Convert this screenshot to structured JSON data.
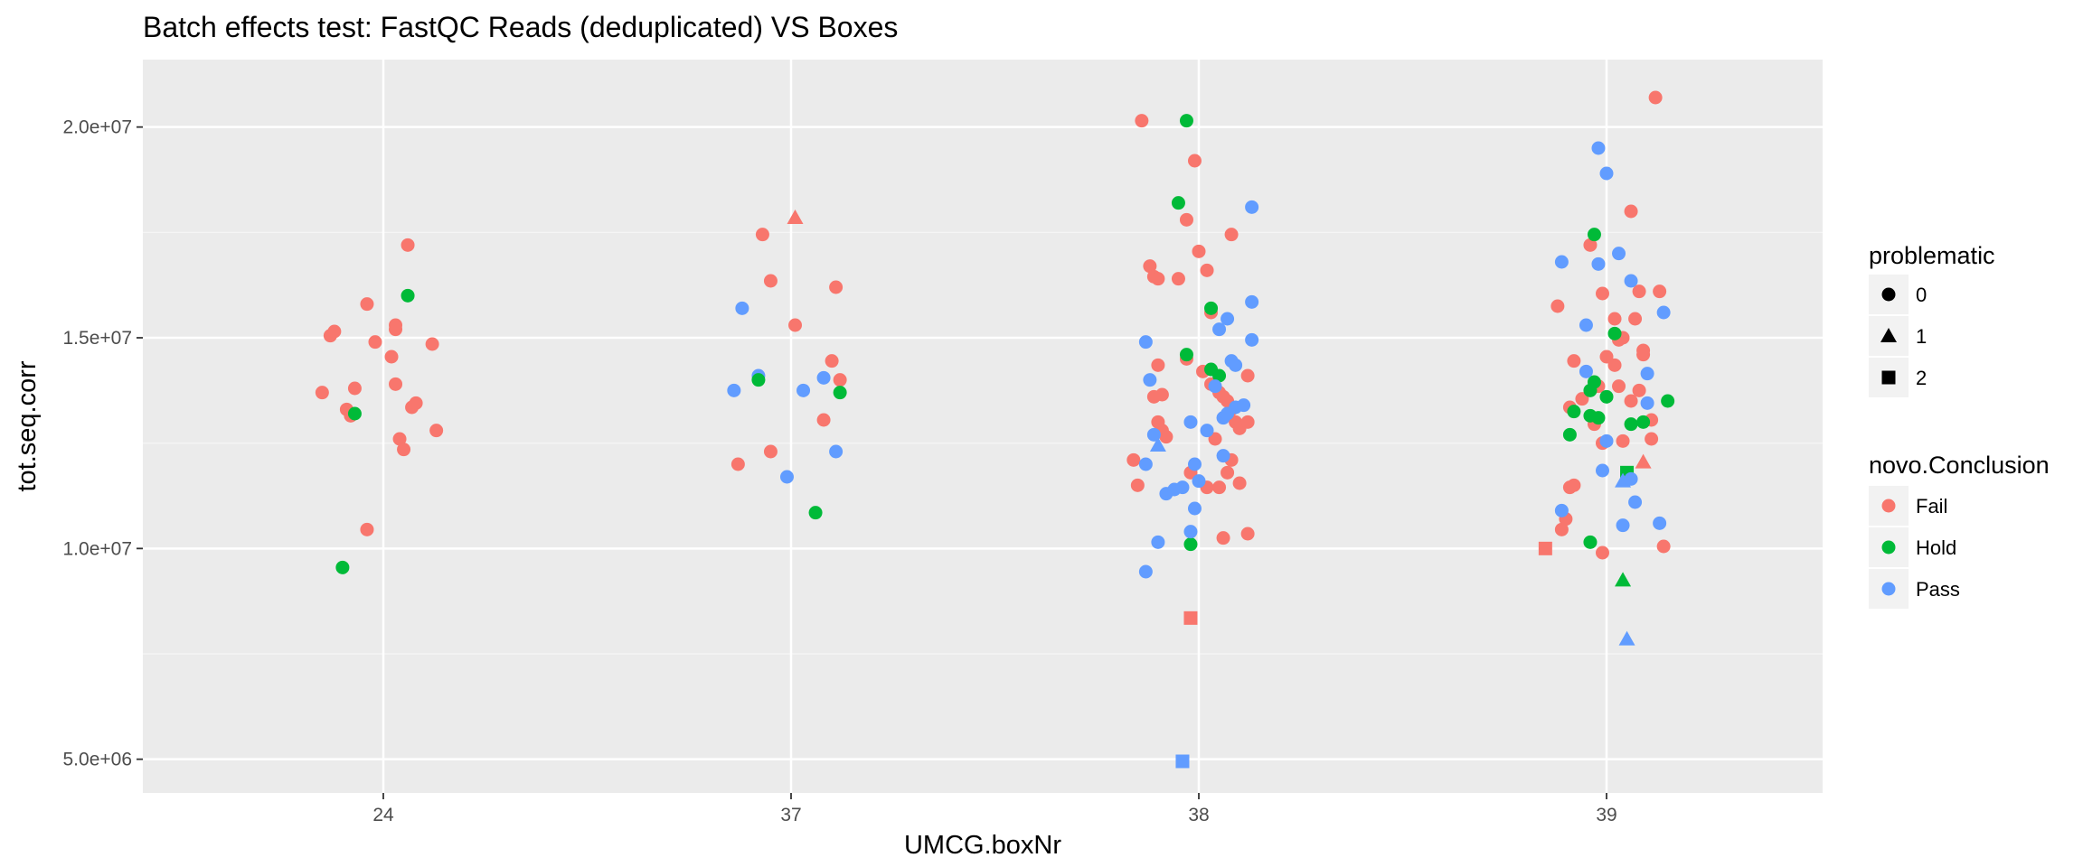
{
  "chart_data": {
    "type": "scatter",
    "title": "Batch effects test: FastQC Reads (deduplicated) VS Boxes",
    "xlabel": "UMCG.boxNr",
    "ylabel": "tot.seq.corr",
    "categories": [
      "24",
      "37",
      "38",
      "39"
    ],
    "ylim": [
      4200000,
      21600000
    ],
    "yticks": [
      5000000,
      10000000,
      15000000,
      20000000
    ],
    "ytick_labels": [
      "5.0e+06",
      "1.0e+07",
      "1.5e+07",
      "2.0e+07"
    ],
    "grid": true,
    "legend_position": "right",
    "legends": {
      "shape": {
        "title": "problematic",
        "entries": [
          {
            "label": "0",
            "shape": "circle"
          },
          {
            "label": "1",
            "shape": "triangle"
          },
          {
            "label": "2",
            "shape": "square"
          }
        ]
      },
      "color": {
        "title": "novo.Conclusion",
        "entries": [
          {
            "label": "Fail",
            "color": "#F8766D"
          },
          {
            "label": "Hold",
            "color": "#00BA38"
          },
          {
            "label": "Pass",
            "color": "#619CFF"
          }
        ]
      }
    },
    "colors": {
      "Fail": "#F8766D",
      "Hold": "#00BA38",
      "Pass": "#619CFF"
    },
    "points": [
      [
        "24",
        -0.15,
        13700000,
        "Fail",
        0
      ],
      [
        "24",
        -0.13,
        15050000,
        "Fail",
        0
      ],
      [
        "24",
        -0.12,
        15150000,
        "Fail",
        0
      ],
      [
        "24",
        -0.09,
        13300000,
        "Fail",
        0
      ],
      [
        "24",
        -0.08,
        13150000,
        "Fail",
        0
      ],
      [
        "24",
        -0.07,
        13800000,
        "Fail",
        0
      ],
      [
        "24",
        -0.04,
        15800000,
        "Fail",
        0
      ],
      [
        "24",
        -0.04,
        10450000,
        "Fail",
        0
      ],
      [
        "24",
        -0.02,
        14900000,
        "Fail",
        0
      ],
      [
        "24",
        0.02,
        14550000,
        "Fail",
        0
      ],
      [
        "24",
        0.03,
        15200000,
        "Fail",
        0
      ],
      [
        "24",
        0.03,
        15300000,
        "Fail",
        0
      ],
      [
        "24",
        0.03,
        13900000,
        "Fail",
        0
      ],
      [
        "24",
        0.04,
        12600000,
        "Fail",
        0
      ],
      [
        "24",
        0.05,
        12350000,
        "Fail",
        0
      ],
      [
        "24",
        0.06,
        17200000,
        "Fail",
        0
      ],
      [
        "24",
        0.07,
        13350000,
        "Fail",
        0
      ],
      [
        "24",
        0.08,
        13450000,
        "Fail",
        0
      ],
      [
        "24",
        0.12,
        14850000,
        "Fail",
        0
      ],
      [
        "24",
        0.13,
        12800000,
        "Fail",
        0
      ],
      [
        "24",
        -0.07,
        13200000,
        "Hold",
        0
      ],
      [
        "24",
        -0.1,
        9550000,
        "Hold",
        0
      ],
      [
        "24",
        0.06,
        16000000,
        "Hold",
        0
      ],
      [
        "37",
        -0.13,
        12000000,
        "Fail",
        0
      ],
      [
        "37",
        -0.07,
        17450000,
        "Fail",
        0
      ],
      [
        "37",
        -0.05,
        16350000,
        "Fail",
        0
      ],
      [
        "37",
        -0.05,
        12300000,
        "Fail",
        0
      ],
      [
        "37",
        0.01,
        15300000,
        "Fail",
        0
      ],
      [
        "37",
        0.08,
        13050000,
        "Fail",
        0
      ],
      [
        "37",
        0.1,
        14450000,
        "Fail",
        0
      ],
      [
        "37",
        0.11,
        16200000,
        "Fail",
        0
      ],
      [
        "37",
        0.12,
        14000000,
        "Fail",
        0
      ],
      [
        "37",
        0.01,
        17850000,
        "Fail",
        1
      ],
      [
        "37",
        -0.14,
        13750000,
        "Pass",
        0
      ],
      [
        "37",
        -0.12,
        15700000,
        "Pass",
        0
      ],
      [
        "37",
        -0.08,
        14100000,
        "Pass",
        0
      ],
      [
        "37",
        -0.01,
        11700000,
        "Pass",
        0
      ],
      [
        "37",
        0.03,
        13750000,
        "Pass",
        0
      ],
      [
        "37",
        0.08,
        14050000,
        "Pass",
        0
      ],
      [
        "37",
        0.11,
        12300000,
        "Pass",
        0
      ],
      [
        "37",
        -0.08,
        14000000,
        "Hold",
        0
      ],
      [
        "37",
        0.06,
        10850000,
        "Hold",
        0
      ],
      [
        "37",
        0.12,
        13700000,
        "Hold",
        0
      ],
      [
        "38",
        -0.14,
        20150000,
        "Fail",
        0
      ],
      [
        "38",
        -0.12,
        16700000,
        "Fail",
        0
      ],
      [
        "38",
        -0.11,
        16450000,
        "Fail",
        0
      ],
      [
        "38",
        -0.1,
        16400000,
        "Fail",
        0
      ],
      [
        "38",
        -0.1,
        14350000,
        "Fail",
        0
      ],
      [
        "38",
        -0.09,
        13650000,
        "Fail",
        0
      ],
      [
        "38",
        -0.11,
        13600000,
        "Fail",
        0
      ],
      [
        "38",
        -0.1,
        13000000,
        "Fail",
        0
      ],
      [
        "38",
        -0.09,
        12800000,
        "Fail",
        0
      ],
      [
        "38",
        -0.08,
        12650000,
        "Fail",
        0
      ],
      [
        "38",
        -0.16,
        12100000,
        "Fail",
        0
      ],
      [
        "38",
        -0.15,
        11500000,
        "Fail",
        0
      ],
      [
        "38",
        -0.05,
        16400000,
        "Fail",
        0
      ],
      [
        "38",
        -0.03,
        17800000,
        "Fail",
        0
      ],
      [
        "38",
        -0.01,
        19200000,
        "Fail",
        0
      ],
      [
        "38",
        0,
        17050000,
        "Fail",
        0
      ],
      [
        "38",
        0.02,
        16600000,
        "Fail",
        0
      ],
      [
        "38",
        0.03,
        15600000,
        "Fail",
        0
      ],
      [
        "38",
        -0.03,
        14500000,
        "Fail",
        0
      ],
      [
        "38",
        0.01,
        14200000,
        "Fail",
        0
      ],
      [
        "38",
        0.03,
        13900000,
        "Fail",
        0
      ],
      [
        "38",
        0.05,
        13700000,
        "Fail",
        0
      ],
      [
        "38",
        0.06,
        13600000,
        "Fail",
        0
      ],
      [
        "38",
        0.07,
        13500000,
        "Fail",
        0
      ],
      [
        "38",
        0.08,
        13300000,
        "Fail",
        0
      ],
      [
        "38",
        0.09,
        13000000,
        "Fail",
        0
      ],
      [
        "38",
        0.1,
        12850000,
        "Fail",
        0
      ],
      [
        "38",
        0.04,
        12600000,
        "Fail",
        0
      ],
      [
        "38",
        0.08,
        12100000,
        "Fail",
        0
      ],
      [
        "38",
        0.07,
        11800000,
        "Fail",
        0
      ],
      [
        "38",
        -0.02,
        11800000,
        "Fail",
        0
      ],
      [
        "38",
        0.02,
        11450000,
        "Fail",
        0
      ],
      [
        "38",
        0.05,
        11450000,
        "Fail",
        0
      ],
      [
        "38",
        0.1,
        11550000,
        "Fail",
        0
      ],
      [
        "38",
        0.06,
        10250000,
        "Fail",
        0
      ],
      [
        "38",
        0.12,
        10350000,
        "Fail",
        0
      ],
      [
        "38",
        0.08,
        17450000,
        "Fail",
        0
      ],
      [
        "38",
        0.12,
        14100000,
        "Fail",
        0
      ],
      [
        "38",
        0.12,
        13000000,
        "Fail",
        0
      ],
      [
        "38",
        -0.02,
        8350000,
        "Fail",
        2
      ],
      [
        "38",
        -0.05,
        18200000,
        "Hold",
        0
      ],
      [
        "38",
        -0.03,
        20150000,
        "Hold",
        0
      ],
      [
        "38",
        -0.03,
        14600000,
        "Hold",
        0
      ],
      [
        "38",
        0.03,
        15700000,
        "Hold",
        0
      ],
      [
        "38",
        0.03,
        14250000,
        "Hold",
        0
      ],
      [
        "38",
        0.05,
        14100000,
        "Hold",
        0
      ],
      [
        "38",
        -0.02,
        10100000,
        "Hold",
        0
      ],
      [
        "38",
        -0.12,
        14000000,
        "Pass",
        0
      ],
      [
        "38",
        -0.13,
        14900000,
        "Pass",
        0
      ],
      [
        "38",
        -0.11,
        12700000,
        "Pass",
        0
      ],
      [
        "38",
        -0.13,
        12000000,
        "Pass",
        0
      ],
      [
        "38",
        -0.1,
        12450000,
        "Pass",
        1
      ],
      [
        "38",
        -0.08,
        11300000,
        "Pass",
        0
      ],
      [
        "38",
        -0.06,
        11400000,
        "Pass",
        0
      ],
      [
        "38",
        -0.04,
        11450000,
        "Pass",
        0
      ],
      [
        "38",
        -0.13,
        9450000,
        "Pass",
        0
      ],
      [
        "38",
        -0.1,
        10150000,
        "Pass",
        0
      ],
      [
        "38",
        -0.02,
        13000000,
        "Pass",
        0
      ],
      [
        "38",
        -0.01,
        12000000,
        "Pass",
        0
      ],
      [
        "38",
        0,
        11600000,
        "Pass",
        0
      ],
      [
        "38",
        -0.01,
        10950000,
        "Pass",
        0
      ],
      [
        "38",
        -0.02,
        10400000,
        "Pass",
        0
      ],
      [
        "38",
        0.02,
        12800000,
        "Pass",
        0
      ],
      [
        "38",
        0.04,
        13850000,
        "Pass",
        0
      ],
      [
        "38",
        0.05,
        15200000,
        "Pass",
        0
      ],
      [
        "38",
        0.07,
        15450000,
        "Pass",
        0
      ],
      [
        "38",
        0.08,
        14450000,
        "Pass",
        0
      ],
      [
        "38",
        0.09,
        14350000,
        "Pass",
        0
      ],
      [
        "38",
        0.06,
        13100000,
        "Pass",
        0
      ],
      [
        "38",
        0.07,
        13200000,
        "Pass",
        0
      ],
      [
        "38",
        0.09,
        13350000,
        "Pass",
        0
      ],
      [
        "38",
        0.11,
        13400000,
        "Pass",
        0
      ],
      [
        "38",
        0.13,
        15850000,
        "Pass",
        0
      ],
      [
        "38",
        0.13,
        14950000,
        "Pass",
        0
      ],
      [
        "38",
        0.13,
        18100000,
        "Pass",
        0
      ],
      [
        "38",
        0.06,
        12200000,
        "Pass",
        0
      ],
      [
        "38",
        -0.04,
        4950000,
        "Pass",
        2
      ],
      [
        "39",
        -0.12,
        15750000,
        "Fail",
        0
      ],
      [
        "39",
        -0.09,
        13350000,
        "Fail",
        0
      ],
      [
        "39",
        -0.08,
        14450000,
        "Fail",
        0
      ],
      [
        "39",
        -0.06,
        13550000,
        "Fail",
        0
      ],
      [
        "39",
        -0.04,
        17200000,
        "Fail",
        0
      ],
      [
        "39",
        -0.02,
        13850000,
        "Fail",
        0
      ],
      [
        "39",
        -0.09,
        11450000,
        "Fail",
        0
      ],
      [
        "39",
        -0.08,
        11500000,
        "Fail",
        0
      ],
      [
        "39",
        -0.11,
        10450000,
        "Fail",
        0
      ],
      [
        "39",
        -0.1,
        10700000,
        "Fail",
        0
      ],
      [
        "39",
        -0.03,
        12950000,
        "Fail",
        0
      ],
      [
        "39",
        -0.01,
        12500000,
        "Fail",
        0
      ],
      [
        "39",
        -0.01,
        16050000,
        "Fail",
        0
      ],
      [
        "39",
        0,
        14550000,
        "Fail",
        0
      ],
      [
        "39",
        0.02,
        15450000,
        "Fail",
        0
      ],
      [
        "39",
        0.02,
        14350000,
        "Fail",
        0
      ],
      [
        "39",
        0.03,
        14950000,
        "Fail",
        0
      ],
      [
        "39",
        0.04,
        15000000,
        "Fail",
        0
      ],
      [
        "39",
        0.03,
        13850000,
        "Fail",
        0
      ],
      [
        "39",
        0.04,
        12550000,
        "Fail",
        0
      ],
      [
        "39",
        0.06,
        13500000,
        "Fail",
        0
      ],
      [
        "39",
        0.07,
        15450000,
        "Fail",
        0
      ],
      [
        "39",
        0.08,
        16100000,
        "Fail",
        0
      ],
      [
        "39",
        0.09,
        14600000,
        "Fail",
        0
      ],
      [
        "39",
        0.09,
        14700000,
        "Fail",
        0
      ],
      [
        "39",
        0.08,
        13750000,
        "Fail",
        0
      ],
      [
        "39",
        0.11,
        13050000,
        "Fail",
        0
      ],
      [
        "39",
        0.11,
        12600000,
        "Fail",
        0
      ],
      [
        "39",
        0.13,
        16100000,
        "Fail",
        0
      ],
      [
        "39",
        0.06,
        18000000,
        "Fail",
        0
      ],
      [
        "39",
        0.12,
        20700000,
        "Fail",
        0
      ],
      [
        "39",
        0.14,
        10050000,
        "Fail",
        0
      ],
      [
        "39",
        -0.01,
        9900000,
        "Fail",
        0
      ],
      [
        "39",
        0.09,
        12050000,
        "Fail",
        1
      ],
      [
        "39",
        -0.15,
        10000000,
        "Fail",
        2
      ],
      [
        "39",
        -0.08,
        13250000,
        "Hold",
        0
      ],
      [
        "39",
        -0.09,
        12700000,
        "Hold",
        0
      ],
      [
        "39",
        -0.04,
        13150000,
        "Hold",
        0
      ],
      [
        "39",
        -0.04,
        13750000,
        "Hold",
        0
      ],
      [
        "39",
        -0.03,
        13950000,
        "Hold",
        0
      ],
      [
        "39",
        -0.02,
        13100000,
        "Hold",
        0
      ],
      [
        "39",
        0.02,
        15100000,
        "Hold",
        0
      ],
      [
        "39",
        -0.03,
        17450000,
        "Hold",
        0
      ],
      [
        "39",
        0.06,
        12950000,
        "Hold",
        0
      ],
      [
        "39",
        0.09,
        13000000,
        "Hold",
        0
      ],
      [
        "39",
        0.15,
        13500000,
        "Hold",
        0
      ],
      [
        "39",
        -0.04,
        10150000,
        "Hold",
        0
      ],
      [
        "39",
        0,
        13600000,
        "Hold",
        0
      ],
      [
        "39",
        0.05,
        11800000,
        "Hold",
        2
      ],
      [
        "39",
        0.04,
        9250000,
        "Hold",
        1
      ],
      [
        "39",
        -0.11,
        16800000,
        "Pass",
        0
      ],
      [
        "39",
        -0.05,
        15300000,
        "Pass",
        0
      ],
      [
        "39",
        -0.05,
        14200000,
        "Pass",
        0
      ],
      [
        "39",
        -0.02,
        19500000,
        "Pass",
        0
      ],
      [
        "39",
        -0.02,
        16750000,
        "Pass",
        0
      ],
      [
        "39",
        0,
        18900000,
        "Pass",
        0
      ],
      [
        "39",
        0.03,
        17000000,
        "Pass",
        0
      ],
      [
        "39",
        0.06,
        16350000,
        "Pass",
        0
      ],
      [
        "39",
        0.14,
        15600000,
        "Pass",
        0
      ],
      [
        "39",
        0.1,
        14150000,
        "Pass",
        0
      ],
      [
        "39",
        0.1,
        13450000,
        "Pass",
        0
      ],
      [
        "39",
        -0.11,
        10900000,
        "Pass",
        0
      ],
      [
        "39",
        -0.01,
        11850000,
        "Pass",
        0
      ],
      [
        "39",
        0.04,
        10550000,
        "Pass",
        0
      ],
      [
        "39",
        0.07,
        11100000,
        "Pass",
        0
      ],
      [
        "39",
        0.13,
        10600000,
        "Pass",
        0
      ],
      [
        "39",
        0,
        12550000,
        "Pass",
        0
      ],
      [
        "39",
        0.04,
        11600000,
        "Pass",
        1
      ],
      [
        "39",
        0.05,
        7850000,
        "Pass",
        1
      ],
      [
        "39",
        0.06,
        11650000,
        "Pass",
        0
      ]
    ]
  }
}
